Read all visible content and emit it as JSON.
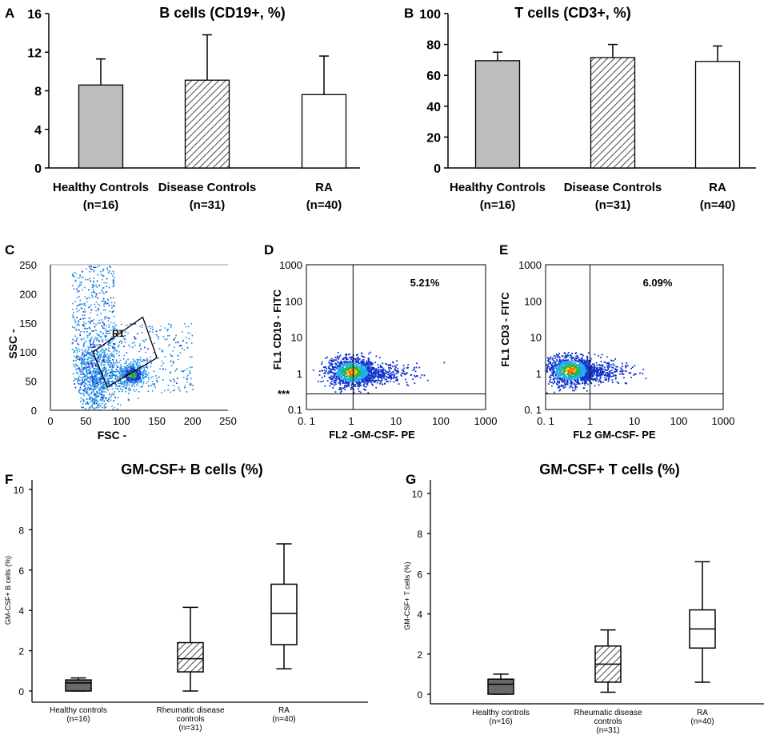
{
  "colors": {
    "healthy": "#bdbdbd",
    "hatch": "#555555",
    "box_dark": "#6a6a6a",
    "dot_blue": "#2a96e8",
    "dot_deep": "#1133cc"
  },
  "chart_data": [
    {
      "panel": "A",
      "type": "bar",
      "title": "B cells (CD19+, %)",
      "categories": [
        "Healthy Controls",
        "Disease Controls",
        "RA"
      ],
      "ns": [
        "(n=16)",
        "(n=31)",
        "(n=40)"
      ],
      "fills": [
        "solid-gray",
        "hatched",
        "white"
      ],
      "values": [
        8.6,
        9.1,
        7.6
      ],
      "errors": [
        2.7,
        4.7,
        4.0
      ],
      "ylim": [
        0,
        16
      ],
      "yticks": [
        0,
        4,
        8,
        12,
        16
      ],
      "ytick_labels": [
        "0",
        "4",
        "8",
        "12",
        "16"
      ]
    },
    {
      "panel": "B",
      "type": "bar",
      "title": "T cells (CD3+, %)",
      "categories": [
        "Healthy Controls",
        "Disease Controls",
        "RA"
      ],
      "ns": [
        "(n=16)",
        "(n=31)",
        "(n=40)"
      ],
      "fills": [
        "solid-gray",
        "hatched",
        "white"
      ],
      "values": [
        69.5,
        71.5,
        69.0
      ],
      "errors": [
        5.5,
        8.5,
        10.0
      ],
      "ylim": [
        0,
        100
      ],
      "yticks": [
        0,
        20,
        40,
        60,
        80,
        100
      ],
      "ytick_labels": [
        "0",
        "20",
        "40",
        "60",
        "80",
        "100"
      ]
    },
    {
      "panel": "C",
      "type": "scatter",
      "description_axis": "flow cytometry gating",
      "xlabel": "FSC -",
      "ylabel": "SSC -",
      "gate_label": "R1",
      "xlim": [
        0,
        250
      ],
      "ylim": [
        0,
        250
      ],
      "xticks": [
        0,
        50,
        100,
        150,
        200,
        250
      ],
      "xtick_labels": [
        "0",
        "50",
        "100",
        "150",
        "200",
        "250"
      ],
      "yticks": [
        0,
        50,
        100,
        150,
        200,
        250
      ],
      "ytick_labels": [
        "0",
        "50",
        "100",
        "150",
        "200",
        "250"
      ],
      "gate_polygon": [
        [
          80,
          40
        ],
        [
          150,
          90
        ],
        [
          130,
          160
        ],
        [
          60,
          100
        ]
      ]
    },
    {
      "panel": "D",
      "type": "scatter",
      "scale": "log",
      "xlabel": "FL2  -GM-CSF- PE",
      "ylabel": "FL1  CD19 - FITC",
      "percent": "5.21%",
      "marker": "***",
      "xticks": [
        0.1,
        1,
        10,
        100,
        1000
      ],
      "xtick_labels": [
        "0. 1",
        "1",
        "10",
        "100",
        "1000"
      ],
      "yticks": [
        0.1,
        1,
        10,
        100,
        1000
      ],
      "ytick_labels": [
        "0.1",
        "1",
        "10",
        "100",
        "1000"
      ],
      "quadrant_x": 1.1,
      "quadrant_y": 0.27
    },
    {
      "panel": "E",
      "type": "scatter",
      "scale": "log",
      "xlabel": "FL2  GM-CSF- PE",
      "ylabel": "FL1  CD3 - FITC",
      "percent": "6.09%",
      "xticks": [
        0.1,
        1,
        10,
        100,
        1000
      ],
      "xtick_labels": [
        "0. 1",
        "1",
        "10",
        "100",
        "1000"
      ],
      "yticks": [
        0.1,
        1,
        10,
        100,
        1000
      ],
      "ytick_labels": [
        "0. 1",
        "1",
        "10",
        "100",
        "1000"
      ],
      "quadrant_x": 1.0,
      "quadrant_y": 0.27
    },
    {
      "panel": "F",
      "type": "box",
      "title": "GM-CSF+ B cells (%)",
      "ylabel": "GM-CSF+ B cells (%)",
      "categories": [
        [
          "Healthy controls",
          "(n=16)"
        ],
        [
          "Rheumatic disease",
          "controls",
          "(n=31)"
        ],
        [
          "RA",
          "(n=40)"
        ]
      ],
      "fills": [
        "dark-gray",
        "hatched",
        "white"
      ],
      "boxes": [
        {
          "min": 0.0,
          "q1": 0.0,
          "median": 0.4,
          "q3": 0.55,
          "max": 0.65
        },
        {
          "min": 0.0,
          "q1": 0.95,
          "median": 1.6,
          "q3": 2.4,
          "max": 4.15
        },
        {
          "min": 1.1,
          "q1": 2.3,
          "median": 3.85,
          "q3": 5.3,
          "max": 7.3
        }
      ],
      "ylim": [
        0,
        10
      ],
      "yticks": [
        0,
        2,
        4,
        6,
        8,
        10
      ],
      "ytick_labels": [
        "0",
        "2",
        "4",
        "6",
        "8",
        "10"
      ]
    },
    {
      "panel": "G",
      "type": "box",
      "title": "GM-CSF+ T cells (%)",
      "ylabel": "GM-CSF+ T cells (%)",
      "categories": [
        [
          "Healthy controls",
          "(n=16)"
        ],
        [
          "Rheumatic disease",
          "controls",
          "(n=31)"
        ],
        [
          "RA",
          "(n=40)"
        ]
      ],
      "fills": [
        "dark-gray",
        "hatched",
        "white"
      ],
      "boxes": [
        {
          "min": 0.0,
          "q1": 0.0,
          "median": 0.5,
          "q3": 0.75,
          "max": 1.0
        },
        {
          "min": 0.1,
          "q1": 0.6,
          "median": 1.5,
          "q3": 2.4,
          "max": 3.2
        },
        {
          "min": 0.6,
          "q1": 2.3,
          "median": 3.25,
          "q3": 4.2,
          "max": 6.6
        }
      ],
      "ylim": [
        0,
        10
      ],
      "yticks": [
        0,
        2,
        4,
        6,
        8,
        10
      ],
      "ytick_labels": [
        "0",
        "2",
        "4",
        "6",
        "8",
        "10"
      ]
    }
  ]
}
